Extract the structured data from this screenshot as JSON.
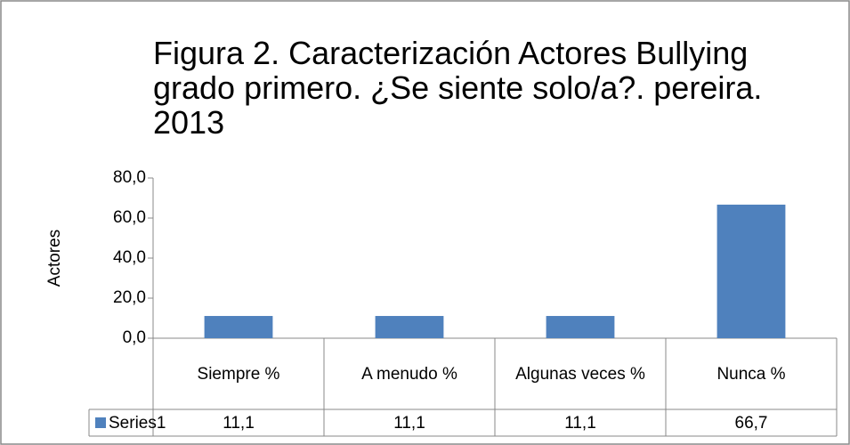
{
  "chart_data": {
    "type": "bar",
    "title": "Figura 2. Caracterización Actores Bullying grado primero. ¿Se siente solo/a?. pereira. 2013",
    "y_label": "Actores",
    "categories": [
      "Siempre %",
      "A menudo %",
      "Algunas veces %",
      "Nunca %"
    ],
    "series": [
      {
        "name": "Series1",
        "color": "#4f81bd",
        "values": [
          11.1,
          11.1,
          11.1,
          66.7
        ],
        "value_labels": [
          "11,1",
          "11,1",
          "11,1",
          "66,7"
        ]
      }
    ],
    "ylim": [
      0,
      80
    ],
    "yticks": [
      {
        "value": 0,
        "label": "0,0"
      },
      {
        "value": 20,
        "label": "20,0"
      },
      {
        "value": 40,
        "label": "40,0"
      },
      {
        "value": 60,
        "label": "60,0"
      },
      {
        "value": 80,
        "label": "80,0"
      }
    ],
    "grid": false
  }
}
